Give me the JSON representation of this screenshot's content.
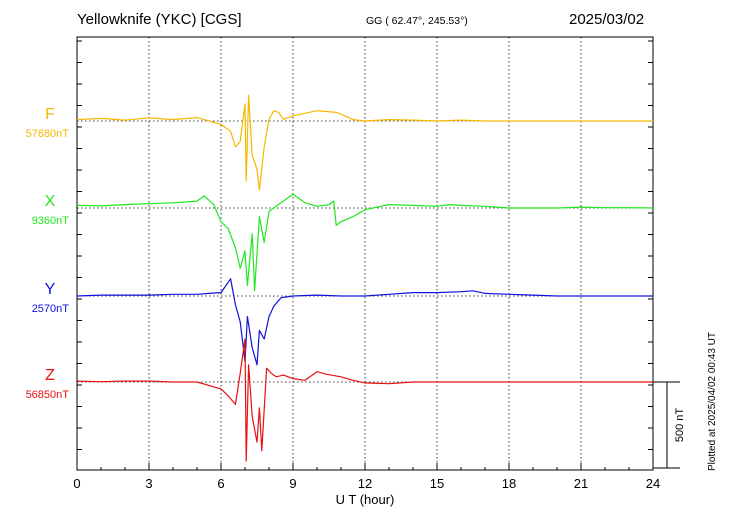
{
  "header": {
    "title": "Yellowknife (YKC)  [CGS]",
    "coords": "GG ( 62.47°, 245.53°)",
    "date": "2025/03/02"
  },
  "footer": {
    "plotted": "Plotted at 2025/04/02 00:43 UT"
  },
  "chart_data": {
    "type": "line",
    "xlabel": "U T (hour)",
    "xlim": [
      0,
      24
    ],
    "xticks": [
      0,
      3,
      6,
      9,
      12,
      15,
      18,
      21,
      24
    ],
    "scale_bar": {
      "label": "500 nT",
      "value_nT": 500
    },
    "series": [
      {
        "name": "F",
        "baseline_label": "57680nT",
        "baseline_nT": 57680,
        "color": "#f5b800",
        "points": [
          [
            0,
            -8
          ],
          [
            1,
            -15
          ],
          [
            2,
            -5
          ],
          [
            3,
            -18
          ],
          [
            4,
            -8
          ],
          [
            5,
            -20
          ],
          [
            5.5,
            0
          ],
          [
            6,
            20
          ],
          [
            6.4,
            60
          ],
          [
            6.6,
            150
          ],
          [
            6.8,
            120
          ],
          [
            7,
            -100
          ],
          [
            7.05,
            350
          ],
          [
            7.15,
            -150
          ],
          [
            7.3,
            200
          ],
          [
            7.5,
            280
          ],
          [
            7.6,
            400
          ],
          [
            7.8,
            150
          ],
          [
            8,
            -10
          ],
          [
            8.2,
            -60
          ],
          [
            8.4,
            -50
          ],
          [
            8.6,
            -10
          ],
          [
            9,
            -30
          ],
          [
            9.5,
            -45
          ],
          [
            10,
            -60
          ],
          [
            10.4,
            -55
          ],
          [
            10.8,
            -50
          ],
          [
            11,
            -40
          ],
          [
            11.5,
            -8
          ],
          [
            12,
            0
          ],
          [
            13,
            -8
          ],
          [
            14,
            -5
          ],
          [
            15,
            0
          ],
          [
            16,
            -5
          ],
          [
            17,
            0
          ],
          [
            18,
            0
          ],
          [
            19,
            0
          ],
          [
            20,
            0
          ],
          [
            21,
            0
          ],
          [
            22,
            0
          ],
          [
            23,
            0
          ],
          [
            24,
            0
          ]
        ]
      },
      {
        "name": "X",
        "baseline_label": "9360nT",
        "baseline_nT": 9360,
        "color": "#1ee81e",
        "points": [
          [
            0,
            -15
          ],
          [
            1,
            -12
          ],
          [
            2,
            -20
          ],
          [
            3,
            -25
          ],
          [
            4,
            -30
          ],
          [
            4.5,
            -35
          ],
          [
            5,
            -40
          ],
          [
            5.3,
            -70
          ],
          [
            5.7,
            -20
          ],
          [
            6,
            80
          ],
          [
            6.3,
            120
          ],
          [
            6.6,
            230
          ],
          [
            6.8,
            350
          ],
          [
            7,
            250
          ],
          [
            7.1,
            450
          ],
          [
            7.3,
            150
          ],
          [
            7.4,
            480
          ],
          [
            7.6,
            50
          ],
          [
            7.8,
            200
          ],
          [
            8,
            20
          ],
          [
            8.5,
            -30
          ],
          [
            9,
            -80
          ],
          [
            9.5,
            -30
          ],
          [
            10,
            -10
          ],
          [
            10.5,
            -20
          ],
          [
            10.7,
            -40
          ],
          [
            10.8,
            100
          ],
          [
            11,
            80
          ],
          [
            11.5,
            50
          ],
          [
            12,
            10
          ],
          [
            13,
            -20
          ],
          [
            14,
            -15
          ],
          [
            15,
            -10
          ],
          [
            15.5,
            -20
          ],
          [
            16,
            -15
          ],
          [
            17,
            -10
          ],
          [
            18,
            0
          ],
          [
            19,
            0
          ],
          [
            20,
            0
          ],
          [
            21,
            -5
          ],
          [
            22,
            -2
          ],
          [
            23,
            -2
          ],
          [
            24,
            0
          ]
        ]
      },
      {
        "name": "Y",
        "baseline_label": "2570nT",
        "baseline_nT": 2570,
        "color": "#1010e0",
        "points": [
          [
            0,
            0
          ],
          [
            1,
            -5
          ],
          [
            2,
            -5
          ],
          [
            3,
            -5
          ],
          [
            4,
            -10
          ],
          [
            5,
            -10
          ],
          [
            5.5,
            -15
          ],
          [
            6,
            -20
          ],
          [
            6.4,
            -100
          ],
          [
            6.6,
            50
          ],
          [
            6.8,
            150
          ],
          [
            7,
            380
          ],
          [
            7.1,
            120
          ],
          [
            7.3,
            300
          ],
          [
            7.5,
            400
          ],
          [
            7.6,
            200
          ],
          [
            7.8,
            250
          ],
          [
            8,
            120
          ],
          [
            8.2,
            60
          ],
          [
            8.5,
            10
          ],
          [
            9,
            0
          ],
          [
            10,
            -5
          ],
          [
            11,
            0
          ],
          [
            12,
            0
          ],
          [
            13,
            -10
          ],
          [
            14,
            -20
          ],
          [
            15,
            -20
          ],
          [
            16,
            -25
          ],
          [
            16.5,
            -30
          ],
          [
            17,
            -15
          ],
          [
            18,
            -10
          ],
          [
            19,
            -5
          ],
          [
            20,
            0
          ],
          [
            21,
            0
          ],
          [
            22,
            0
          ],
          [
            23,
            0
          ],
          [
            24,
            0
          ]
        ]
      },
      {
        "name": "Z",
        "baseline_label": "56850nT",
        "baseline_nT": 56850,
        "color": "#e81010",
        "points": [
          [
            0,
            -5
          ],
          [
            1,
            -2
          ],
          [
            2,
            -5
          ],
          [
            3,
            -5
          ],
          [
            4,
            0
          ],
          [
            5,
            0
          ],
          [
            5.5,
            20
          ],
          [
            6,
            40
          ],
          [
            6.3,
            80
          ],
          [
            6.6,
            130
          ],
          [
            6.8,
            -50
          ],
          [
            7,
            -250
          ],
          [
            7.05,
            460
          ],
          [
            7.15,
            -100
          ],
          [
            7.3,
            200
          ],
          [
            7.5,
            350
          ],
          [
            7.6,
            150
          ],
          [
            7.7,
            400
          ],
          [
            7.9,
            -80
          ],
          [
            8.1,
            -50
          ],
          [
            8.3,
            -30
          ],
          [
            8.6,
            -40
          ],
          [
            9,
            -20
          ],
          [
            9.5,
            -10
          ],
          [
            10,
            -60
          ],
          [
            10.4,
            -45
          ],
          [
            11,
            -30
          ],
          [
            11.5,
            -10
          ],
          [
            12,
            5
          ],
          [
            13,
            10
          ],
          [
            14,
            0
          ],
          [
            15,
            0
          ],
          [
            16,
            0
          ],
          [
            17,
            0
          ],
          [
            18,
            0
          ],
          [
            19,
            0
          ],
          [
            20,
            0
          ],
          [
            21,
            0
          ],
          [
            22,
            0
          ],
          [
            23,
            0
          ],
          [
            24,
            0
          ]
        ]
      }
    ]
  }
}
